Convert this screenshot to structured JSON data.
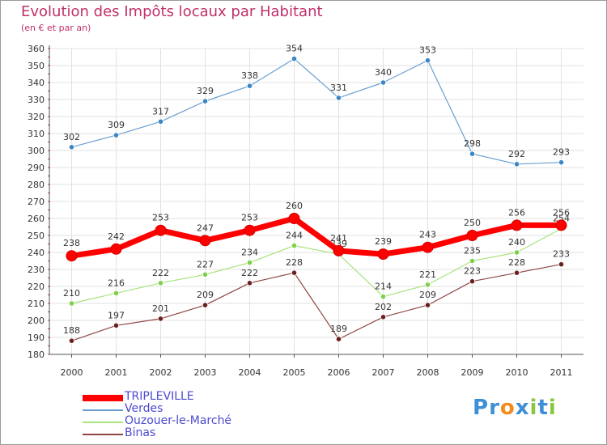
{
  "header": {
    "title": "Evolution des Impôts locaux par Habitant",
    "subtitle": "(en € et par an)"
  },
  "logo": {
    "text": "Proxiti",
    "letters": [
      "P",
      "r",
      "o",
      "x",
      "i",
      "t",
      "i"
    ],
    "colors": [
      "#3d8fd6",
      "#3d8fd6",
      "#f28c1e",
      "#3d8fd6",
      "#8bc53f",
      "#3d8fd6",
      "#8bc53f"
    ]
  },
  "chart_data": {
    "type": "line",
    "title": "Evolution des Impôts locaux par Habitant",
    "subtitle": "(en € et par an)",
    "xlabel": "",
    "ylabel": "",
    "ylim": [
      180,
      360
    ],
    "y_ticks": [
      180,
      190,
      200,
      210,
      220,
      230,
      240,
      250,
      260,
      270,
      280,
      290,
      300,
      310,
      320,
      330,
      340,
      350,
      360
    ],
    "categories": [
      "2000",
      "2001",
      "2002",
      "2003",
      "2004",
      "2005",
      "2006",
      "2007",
      "2008",
      "2009",
      "2010",
      "2011"
    ],
    "grid": true,
    "legend_position": "bottom-left",
    "series": [
      {
        "name": "Verdes",
        "color": "#6b9ed1",
        "marker": "#3b86c6",
        "width": 1.2,
        "values": [
          302,
          309,
          317,
          329,
          338,
          354,
          331,
          340,
          353,
          298,
          292,
          293
        ]
      },
      {
        "name": "Ouzouer-le-Marché",
        "color": "#a8e37b",
        "marker": "#7ed04b",
        "width": 1.2,
        "values": [
          210,
          216,
          222,
          227,
          234,
          244,
          239,
          214,
          221,
          235,
          240,
          254
        ]
      },
      {
        "name": "Binas",
        "color": "#8f4646",
        "marker": "#6b1f1f",
        "width": 1.2,
        "values": [
          188,
          197,
          201,
          209,
          222,
          228,
          189,
          202,
          209,
          223,
          228,
          233
        ]
      },
      {
        "name": "TRIPLEVILLE",
        "color": "#ff0000",
        "marker": "#ff0000",
        "width": 7,
        "values": [
          238,
          242,
          253,
          247,
          253,
          260,
          241,
          239,
          243,
          250,
          256,
          256
        ]
      }
    ],
    "legend_order": [
      "TRIPLEVILLE",
      "Verdes",
      "Ouzouer-le-Marché",
      "Binas"
    ]
  }
}
